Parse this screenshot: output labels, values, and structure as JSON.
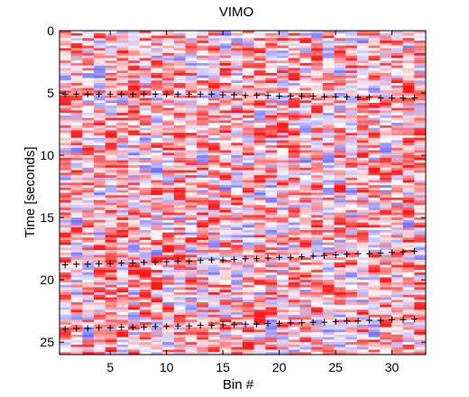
{
  "chart_data": {
    "type": "heatmap",
    "title": "VIMO",
    "xlabel": "Bin #",
    "ylabel": "Time [seconds]",
    "xlim": [
      0.5,
      33
    ],
    "ylim": [
      26,
      0
    ],
    "x_ticks": [
      5,
      10,
      15,
      20,
      25,
      30
    ],
    "y_ticks": [
      0,
      5,
      10,
      15,
      20,
      25
    ],
    "colormap": {
      "low": "#2b2bff",
      "mid": "#ffffff",
      "high": "#ff1a1a"
    },
    "grid": false,
    "legend": "none",
    "marker": "+",
    "marker_color": "#000000",
    "marker_series": [
      {
        "x": [
          1,
          2,
          3,
          4,
          5,
          6,
          7,
          8,
          9,
          10,
          11,
          12,
          13,
          14,
          15,
          16,
          17,
          18,
          19,
          20,
          21,
          22,
          23,
          24,
          25,
          26,
          27,
          28,
          29,
          30,
          31,
          32
        ],
        "y": [
          5.1,
          5.1,
          5.1,
          5.1,
          5.1,
          5.1,
          5.1,
          5.1,
          5.1,
          5.1,
          5.1,
          5.1,
          5.1,
          5.1,
          5.15,
          5.15,
          5.2,
          5.2,
          5.2,
          5.25,
          5.25,
          5.25,
          5.25,
          5.3,
          5.3,
          5.3,
          5.35,
          5.35,
          5.4,
          5.4,
          5.4,
          5.4
        ]
      },
      {
        "x": [
          1,
          2,
          3,
          4,
          5,
          6,
          7,
          8,
          9,
          10,
          11,
          12,
          13,
          14,
          15,
          16,
          17,
          18,
          19,
          20,
          21,
          22,
          23,
          24,
          25,
          26,
          27,
          28,
          29,
          30,
          31,
          32
        ],
        "y": [
          18.8,
          18.75,
          18.75,
          18.7,
          18.7,
          18.65,
          18.65,
          18.6,
          18.6,
          18.55,
          18.5,
          18.5,
          18.45,
          18.4,
          18.4,
          18.35,
          18.3,
          18.3,
          18.25,
          18.2,
          18.2,
          18.15,
          18.1,
          18.05,
          18.0,
          17.95,
          17.9,
          17.9,
          17.85,
          17.8,
          17.75,
          17.7
        ]
      },
      {
        "x": [
          1,
          2,
          3,
          4,
          5,
          6,
          7,
          8,
          9,
          10,
          11,
          12,
          13,
          14,
          15,
          16,
          17,
          18,
          19,
          20,
          21,
          22,
          23,
          24,
          25,
          26,
          27,
          28,
          29,
          30,
          31,
          32
        ],
        "y": [
          23.95,
          23.9,
          23.9,
          23.85,
          23.85,
          23.8,
          23.8,
          23.8,
          23.75,
          23.75,
          23.7,
          23.7,
          23.65,
          23.65,
          23.6,
          23.6,
          23.55,
          23.55,
          23.5,
          23.5,
          23.45,
          23.45,
          23.4,
          23.4,
          23.35,
          23.3,
          23.3,
          23.25,
          23.25,
          23.2,
          23.2,
          23.15
        ]
      }
    ]
  }
}
